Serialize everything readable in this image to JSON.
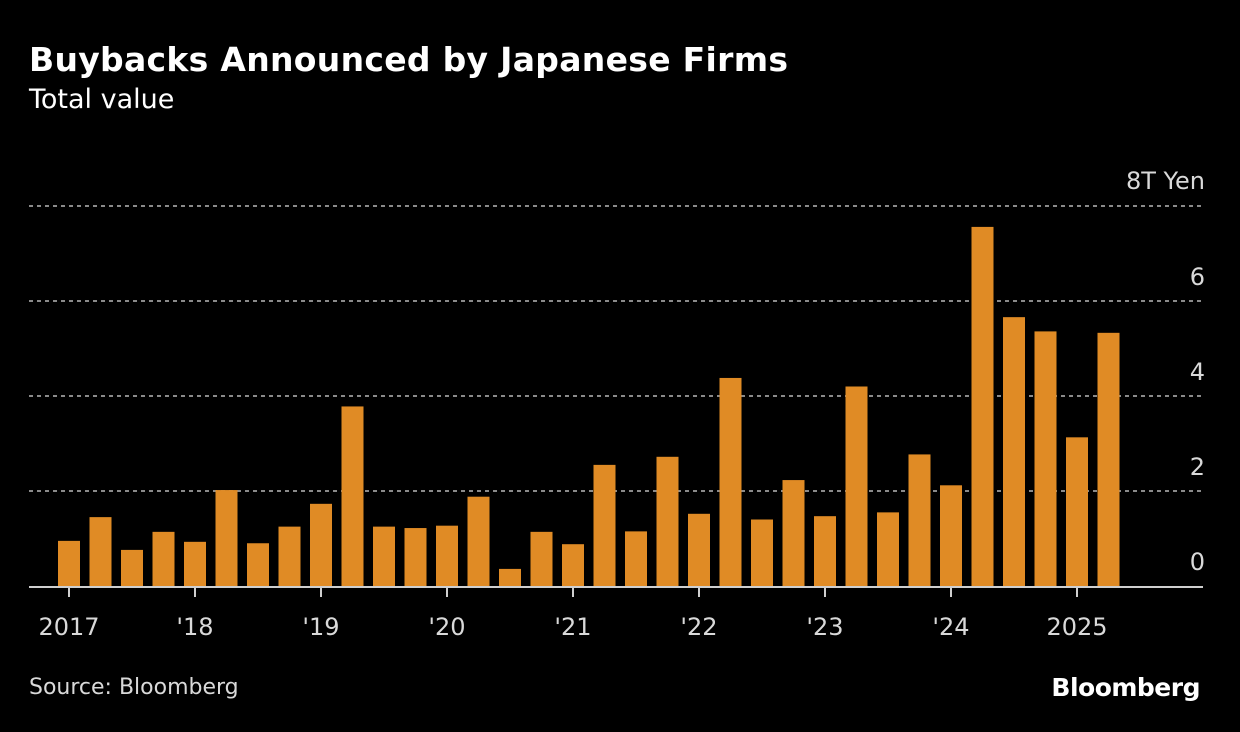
{
  "chart_data": {
    "type": "bar",
    "title": "Buybacks Announced by Japanese Firms",
    "subtitle": "Total value",
    "unit_label": "8T Yen",
    "xlabel": "",
    "ylabel": "",
    "ylim": [
      0,
      8
    ],
    "y_ticks": [
      0,
      2,
      4,
      6,
      8
    ],
    "y_tick_labels": [
      "0",
      "2",
      "4",
      "6",
      "8T Yen"
    ],
    "grid": true,
    "x_tick_labels": [
      "2017",
      "'18",
      "'19",
      "'20",
      "'21",
      "'22",
      "'23",
      "'24",
      "2025"
    ],
    "categories": [
      "2017 Q1",
      "2017 Q2",
      "2017 Q3",
      "2017 Q4",
      "2018 Q1",
      "2018 Q2",
      "2018 Q3",
      "2018 Q4",
      "2019 Q1",
      "2019 Q2",
      "2019 Q3",
      "2019 Q4",
      "2020 Q1",
      "2020 Q2",
      "2020 Q3",
      "2020 Q4",
      "2021 Q1",
      "2021 Q2",
      "2021 Q3",
      "2021 Q4",
      "2022 Q1",
      "2022 Q2",
      "2022 Q3",
      "2022 Q4",
      "2023 Q1",
      "2023 Q2",
      "2023 Q3",
      "2023 Q4",
      "2024 Q1",
      "2024 Q2",
      "2024 Q3",
      "2024 Q4",
      "2025 Q1",
      "2025 Q2"
    ],
    "values": [
      0.95,
      1.45,
      0.76,
      1.14,
      0.93,
      2.02,
      0.9,
      1.25,
      1.73,
      3.78,
      1.25,
      1.22,
      1.27,
      1.88,
      0.36,
      1.14,
      0.88,
      2.55,
      1.15,
      2.72,
      1.52,
      4.38,
      1.4,
      2.23,
      1.47,
      4.2,
      1.55,
      2.77,
      2.12,
      7.56,
      5.66,
      5.36,
      3.13,
      5.33
    ],
    "bar_color": "#E08B25",
    "grid_color": "#8a8a8a",
    "axis_color": "#cfcfcf"
  },
  "footer": {
    "source": "Source: Bloomberg",
    "logo": "Bloomberg"
  }
}
